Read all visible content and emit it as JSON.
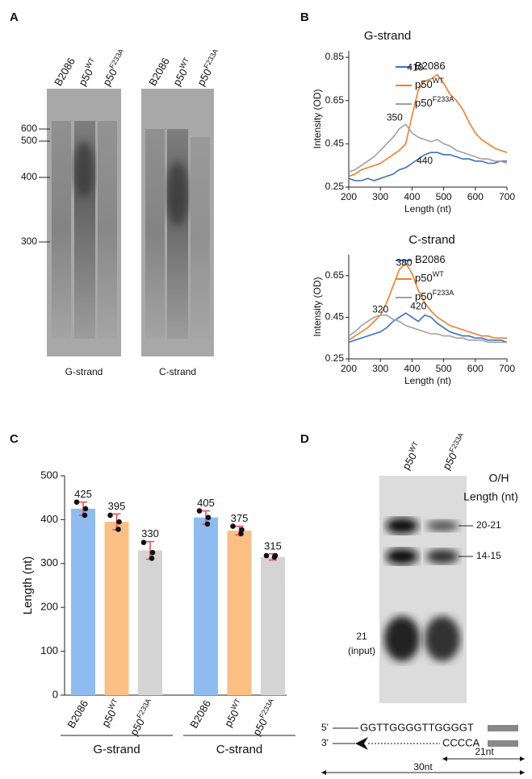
{
  "panel_a": {
    "letter": "A",
    "markers": [
      "600",
      "500",
      "400",
      "300"
    ],
    "gels": [
      {
        "lanes": [
          {
            "text": "B2086"
          },
          {
            "text": "p50",
            "sup": "WT"
          },
          {
            "text": "p50",
            "sup": "F233A"
          }
        ],
        "label": "G-strand"
      },
      {
        "lanes": [
          {
            "text": "B2086"
          },
          {
            "text": "p50",
            "sup": "WT"
          },
          {
            "text": "p50",
            "sup": "F233A"
          }
        ],
        "label": "C-strand"
      }
    ]
  },
  "panel_b": {
    "letter": "B"
  },
  "panel_c": {
    "letter": "C"
  },
  "chart_data": [
    {
      "type": "line",
      "title": "G-strand",
      "x_label": "Length (nt)",
      "y_label": "Intensity (OD)",
      "xlim": [
        200,
        700
      ],
      "xticks": [
        200,
        300,
        400,
        500,
        600,
        700
      ],
      "ylim": [
        0.25,
        0.88
      ],
      "yticks": [
        0.25,
        0.45,
        0.65,
        0.85
      ],
      "x": [
        200,
        220,
        240,
        260,
        280,
        300,
        320,
        340,
        360,
        380,
        400,
        420,
        440,
        460,
        480,
        500,
        520,
        540,
        560,
        580,
        600,
        620,
        640,
        660,
        680,
        700
      ],
      "series": [
        {
          "name": "B2086",
          "color": "#3d6fc4",
          "values": [
            0.29,
            0.28,
            0.28,
            0.29,
            0.28,
            0.29,
            0.3,
            0.31,
            0.33,
            0.34,
            0.36,
            0.38,
            0.4,
            0.41,
            0.41,
            0.4,
            0.4,
            0.39,
            0.38,
            0.38,
            0.37,
            0.37,
            0.36,
            0.36,
            0.37,
            0.37
          ]
        },
        {
          "name": "p50",
          "sup": "WT",
          "color": "#f07f2a",
          "values": [
            0.3,
            0.31,
            0.33,
            0.34,
            0.35,
            0.36,
            0.38,
            0.4,
            0.42,
            0.45,
            0.58,
            0.7,
            0.74,
            0.75,
            0.77,
            0.73,
            0.68,
            0.65,
            0.61,
            0.55,
            0.5,
            0.47,
            0.45,
            0.43,
            0.42,
            0.41
          ]
        },
        {
          "name": "p50",
          "sup": "F233A",
          "color": "#a0a0a0",
          "values": [
            0.32,
            0.33,
            0.35,
            0.37,
            0.39,
            0.42,
            0.45,
            0.48,
            0.52,
            0.54,
            0.5,
            0.48,
            0.47,
            0.46,
            0.47,
            0.45,
            0.44,
            0.42,
            0.41,
            0.4,
            0.39,
            0.38,
            0.38,
            0.37,
            0.37,
            0.36
          ]
        }
      ],
      "annotations": [
        {
          "label": "410",
          "x": 410,
          "y": 0.8
        },
        {
          "label": "350",
          "x": 345,
          "y": 0.57
        },
        {
          "label": "440",
          "x": 440,
          "y": 0.37
        }
      ]
    },
    {
      "type": "line",
      "title": "C-strand",
      "x_label": "Length (nt)",
      "y_label": "Intensity (OD)",
      "xlim": [
        200,
        700
      ],
      "xticks": [
        200,
        300,
        400,
        500,
        600,
        700
      ],
      "ylim": [
        0.25,
        0.75
      ],
      "yticks": [
        0.25,
        0.45,
        0.65
      ],
      "x": [
        200,
        220,
        240,
        260,
        280,
        300,
        320,
        340,
        360,
        380,
        400,
        420,
        440,
        460,
        480,
        500,
        520,
        540,
        560,
        580,
        600,
        620,
        640,
        660,
        680,
        700
      ],
      "series": [
        {
          "name": "B2086",
          "color": "#3d6fc4",
          "values": [
            0.33,
            0.34,
            0.35,
            0.36,
            0.37,
            0.38,
            0.4,
            0.43,
            0.45,
            0.47,
            0.45,
            0.43,
            0.46,
            0.45,
            0.42,
            0.4,
            0.38,
            0.37,
            0.36,
            0.36,
            0.35,
            0.35,
            0.34,
            0.34,
            0.34,
            0.33
          ]
        },
        {
          "name": "p50",
          "sup": "WT",
          "color": "#f07f2a",
          "values": [
            0.34,
            0.36,
            0.38,
            0.4,
            0.43,
            0.46,
            0.52,
            0.6,
            0.68,
            0.71,
            0.66,
            0.58,
            0.52,
            0.48,
            0.45,
            0.43,
            0.41,
            0.4,
            0.39,
            0.38,
            0.37,
            0.36,
            0.36,
            0.35,
            0.35,
            0.35
          ]
        },
        {
          "name": "p50",
          "sup": "F233A",
          "color": "#a0a0a0",
          "values": [
            0.36,
            0.38,
            0.41,
            0.43,
            0.45,
            0.46,
            0.46,
            0.44,
            0.43,
            0.41,
            0.4,
            0.39,
            0.38,
            0.37,
            0.37,
            0.36,
            0.36,
            0.35,
            0.35,
            0.34,
            0.34,
            0.34,
            0.33,
            0.33,
            0.33,
            0.33
          ]
        }
      ],
      "annotations": [
        {
          "label": "380",
          "x": 375,
          "y": 0.71
        },
        {
          "label": "320",
          "x": 300,
          "y": 0.485
        },
        {
          "label": "420",
          "x": 420,
          "y": 0.5
        }
      ]
    },
    {
      "type": "bar",
      "y_label": "Length (nt)",
      "ylim": [
        0,
        500
      ],
      "yticks": [
        0,
        100,
        200,
        300,
        400,
        500
      ],
      "categories": [
        {
          "text": "B2086"
        },
        {
          "text": "p50",
          "sup": "WT"
        },
        {
          "text": "p50",
          "sup": "F233A"
        },
        {
          "text": "B2086"
        },
        {
          "text": "p50",
          "sup": "WT"
        },
        {
          "text": "p50",
          "sup": "F233A"
        }
      ],
      "values": [
        425,
        395,
        330,
        405,
        375,
        315
      ],
      "errors": [
        15,
        18,
        20,
        15,
        10,
        7
      ],
      "points": [
        [
          440,
          410,
          425
        ],
        [
          410,
          378,
          395
        ],
        [
          348,
          312,
          325
        ],
        [
          420,
          390,
          405
        ],
        [
          385,
          368,
          377
        ],
        [
          318,
          315,
          318
        ]
      ],
      "colors": [
        "#8fbcf0",
        "#fbbf84",
        "#d4d4d4",
        "#8fbcf0",
        "#fbbf84",
        "#d4d4d4"
      ],
      "error_color": "#e8474c",
      "groups": [
        {
          "label": "G-strand"
        },
        {
          "label": "C-strand"
        }
      ]
    }
  ],
  "panel_d": {
    "letter": "D",
    "lanes": [
      {
        "text": "p50",
        "sup": "WT"
      },
      {
        "text": "p50",
        "sup": "F233A"
      }
    ],
    "header": [
      "O/H",
      "Length (nt)"
    ],
    "bands": [
      "20-21",
      "14-15"
    ],
    "input": [
      "21",
      "(input)"
    ],
    "diagram": {
      "top_end": "5'",
      "top_seq": "GGTTGGGGTTGGGGT",
      "bottom_end": "3'",
      "bottom_seq": "CCCCA",
      "short": "21nt",
      "long": "30nt"
    }
  }
}
